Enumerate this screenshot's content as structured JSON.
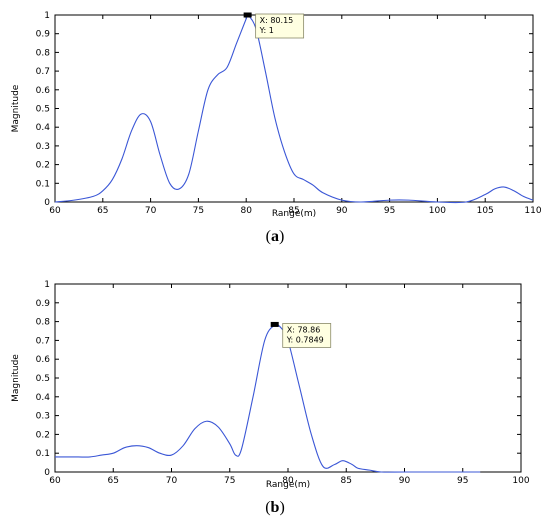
{
  "chart_data": [
    {
      "type": "line",
      "panel_label": "a",
      "xlabel": "Range(m)",
      "ylabel": "Magnitude",
      "xlim": [
        60,
        110
      ],
      "ylim": [
        0,
        1
      ],
      "xticks": [
        "60",
        "65",
        "70",
        "75",
        "80",
        "85",
        "90",
        "95",
        "100",
        "105",
        "110"
      ],
      "yticks": [
        "0",
        "0.1",
        "0.2",
        "0.3",
        "0.4",
        "0.5",
        "0.6",
        "0.7",
        "0.8",
        "0.9",
        "1"
      ],
      "grid": false,
      "series": [
        {
          "color": "#3b57d6",
          "x": [
            60,
            62,
            64,
            65,
            66,
            67,
            68,
            69,
            70,
            71,
            72,
            73,
            74,
            75,
            76,
            77,
            78,
            79,
            80,
            80.15,
            81,
            82,
            83,
            84,
            85,
            86,
            87,
            88,
            90,
            92,
            95,
            97,
            100,
            103,
            105,
            106,
            107,
            108,
            109,
            110
          ],
          "y": [
            0.0,
            0.01,
            0.03,
            0.06,
            0.12,
            0.23,
            0.38,
            0.47,
            0.43,
            0.25,
            0.1,
            0.07,
            0.15,
            0.38,
            0.6,
            0.68,
            0.72,
            0.85,
            0.98,
            1.0,
            0.93,
            0.7,
            0.45,
            0.27,
            0.15,
            0.12,
            0.09,
            0.05,
            0.01,
            0.0,
            0.01,
            0.01,
            0.0,
            0.0,
            0.04,
            0.07,
            0.08,
            0.06,
            0.03,
            0.01
          ]
        }
      ],
      "datatip": {
        "marker": [
          80.15,
          1
        ],
        "lines": [
          "X: 80.15",
          "Y: 1"
        ]
      }
    },
    {
      "type": "line",
      "panel_label": "b",
      "xlabel": "Range(m)",
      "ylabel": "Magnitude",
      "xlim": [
        60,
        100
      ],
      "ylim": [
        0,
        1
      ],
      "xticks": [
        "60",
        "65",
        "70",
        "75",
        "80",
        "85",
        "90",
        "95",
        "100"
      ],
      "yticks": [
        "0",
        "0.1",
        "0.2",
        "0.3",
        "0.4",
        "0.5",
        "0.6",
        "0.7",
        "0.8",
        "0.9",
        "1"
      ],
      "grid": false,
      "series": [
        {
          "color": "#3b57d6",
          "x": [
            60,
            61,
            62,
            63,
            64,
            65,
            66,
            67,
            68,
            69,
            70,
            71,
            72,
            73,
            74,
            75,
            75.5,
            76,
            77,
            78,
            78.86,
            79.5,
            80,
            81,
            82,
            83,
            84,
            84.7,
            85.5,
            86,
            87,
            88,
            90,
            93,
            96.5
          ],
          "y": [
            0.08,
            0.08,
            0.08,
            0.08,
            0.09,
            0.1,
            0.13,
            0.14,
            0.13,
            0.1,
            0.09,
            0.14,
            0.23,
            0.27,
            0.24,
            0.15,
            0.09,
            0.12,
            0.4,
            0.7,
            0.78,
            0.76,
            0.7,
            0.45,
            0.2,
            0.03,
            0.04,
            0.06,
            0.04,
            0.02,
            0.01,
            0.0,
            0.0,
            0.0,
            0.0
          ]
        }
      ],
      "datatip": {
        "marker": [
          78.86,
          0.7849
        ],
        "lines": [
          "X: 78.86",
          "Y: 0.7849"
        ]
      }
    }
  ]
}
